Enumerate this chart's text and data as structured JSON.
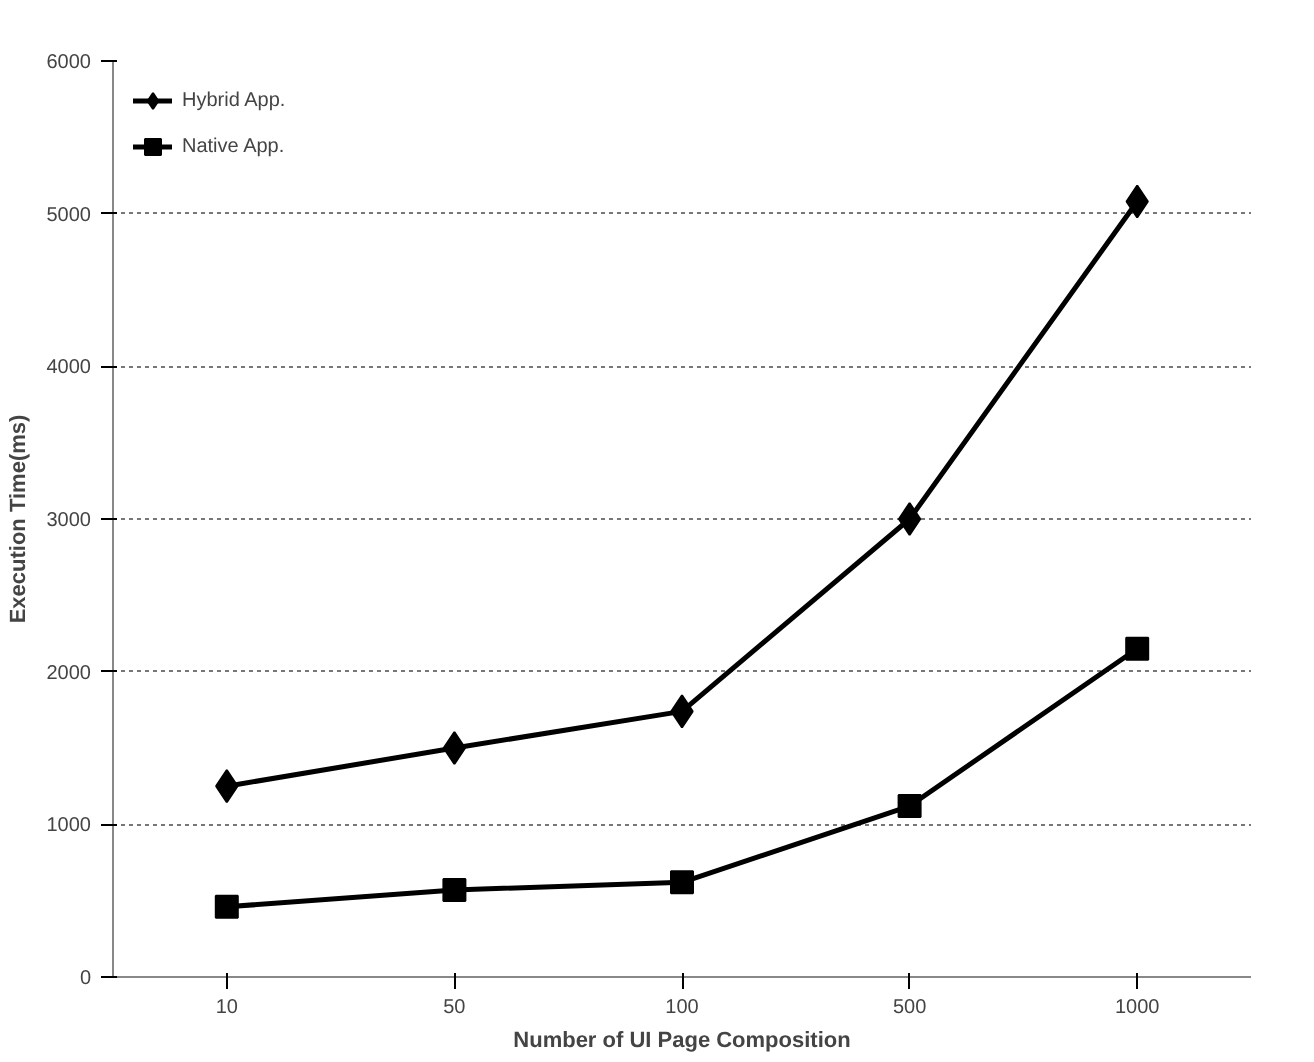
{
  "chart_data": {
    "type": "line",
    "xlabel": "Number of UI Page Composition",
    "ylabel": "Execution Time(ms)",
    "categories": [
      "10",
      "50",
      "100",
      "500",
      "1000"
    ],
    "series": [
      {
        "name": "Hybrid App.",
        "color": "#000000",
        "marker": "diamond",
        "values": [
          1250,
          1500,
          1740,
          3000,
          5080
        ]
      },
      {
        "name": "Native App.",
        "color": "#000000",
        "marker": "square",
        "values": [
          460,
          570,
          620,
          1120,
          2150
        ]
      }
    ],
    "ylim": [
      0,
      6000
    ],
    "yticks": [
      0,
      1000,
      2000,
      3000,
      4000,
      5000,
      6000
    ],
    "grid": "y",
    "legend": "top left",
    "line_style": "solid"
  }
}
